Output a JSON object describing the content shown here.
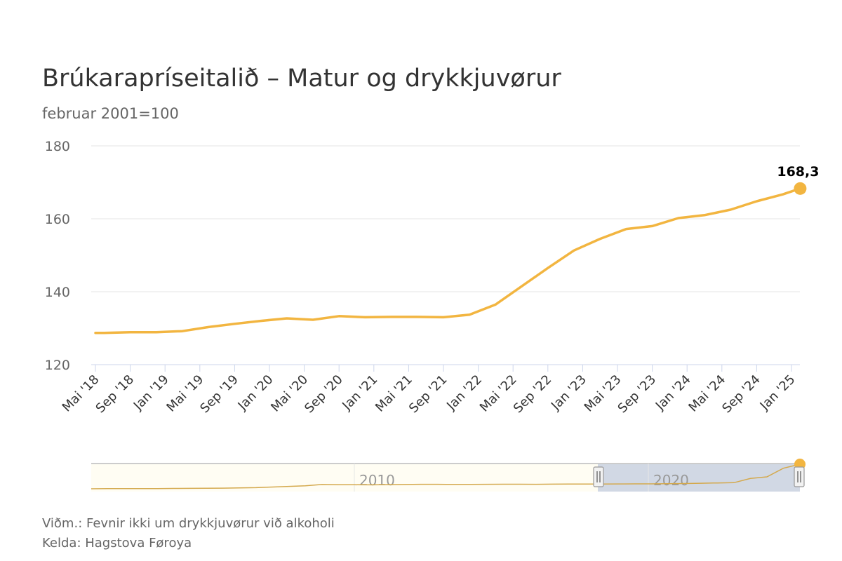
{
  "chart_data": {
    "type": "line",
    "title": "Brúkarapríseitalið – Matur og drykkjuvørur",
    "subtitle": "februar 2001=100",
    "ylim": [
      120,
      180
    ],
    "yticks": [
      "120",
      "140",
      "160",
      "180"
    ],
    "xticks": [
      "Mai '18",
      "Sep '18",
      "Jan '19",
      "Mai '19",
      "Sep '19",
      "Jan '20",
      "Mai '20",
      "Sep '20",
      "Jan '21",
      "Mai '21",
      "Sep '21",
      "Jan '22",
      "Mai '22",
      "Sep '22",
      "Jan '23",
      "Mai '23",
      "Sep '23",
      "Jan '24",
      "Mai '24",
      "Sep '24",
      "Jan '25"
    ],
    "grid": true,
    "series": [
      {
        "color": "#f2b540",
        "x": [
          "2018-05",
          "2018-06",
          "2018-09",
          "2018-12",
          "2019-03",
          "2019-06",
          "2019-09",
          "2019-12",
          "2020-03",
          "2020-06",
          "2020-09",
          "2020-12",
          "2021-03",
          "2021-06",
          "2021-09",
          "2021-12",
          "2022-03",
          "2022-06",
          "2022-09",
          "2022-12",
          "2023-03",
          "2023-06",
          "2023-09",
          "2023-12",
          "2024-03",
          "2024-06",
          "2024-09",
          "2024-12",
          "2025-02"
        ],
        "values": [
          128.7,
          128.7,
          128.9,
          128.9,
          129.2,
          130.3,
          131.2,
          132.0,
          132.7,
          132.3,
          133.3,
          133.0,
          133.1,
          133.1,
          133.0,
          133.7,
          136.5,
          141.5,
          146.5,
          151.3,
          154.5,
          157.2,
          158.0,
          160.2,
          161.0,
          162.5,
          164.8,
          166.7,
          168.3
        ],
        "last_label": "168,3"
      }
    ],
    "navigator": {
      "labels": [
        "2010",
        "2020"
      ],
      "series_values": [
        100,
        100.3,
        100.3,
        100.6,
        100.6,
        101,
        101.1,
        101.4,
        101.8,
        102.6,
        103.1,
        104.8,
        106.6,
        108.4,
        112.0,
        111.3,
        111.1,
        111.0,
        111.6,
        111.9,
        112.4,
        112.4,
        112.1,
        112.3,
        112.5,
        112.7,
        112.7,
        112.5,
        112.9,
        113.0,
        113.1,
        113.0,
        113.4,
        113.6,
        113.7,
        114.1,
        114.7,
        115.5,
        116.2,
        116.9,
        128.7,
        133.1,
        157.2,
        168.3
      ]
    }
  },
  "credits": {
    "note": "Viðm.: Fevnir ikki um drykkjuvørur við alkoholi",
    "source": "Kelda: Hagstova Føroya"
  }
}
